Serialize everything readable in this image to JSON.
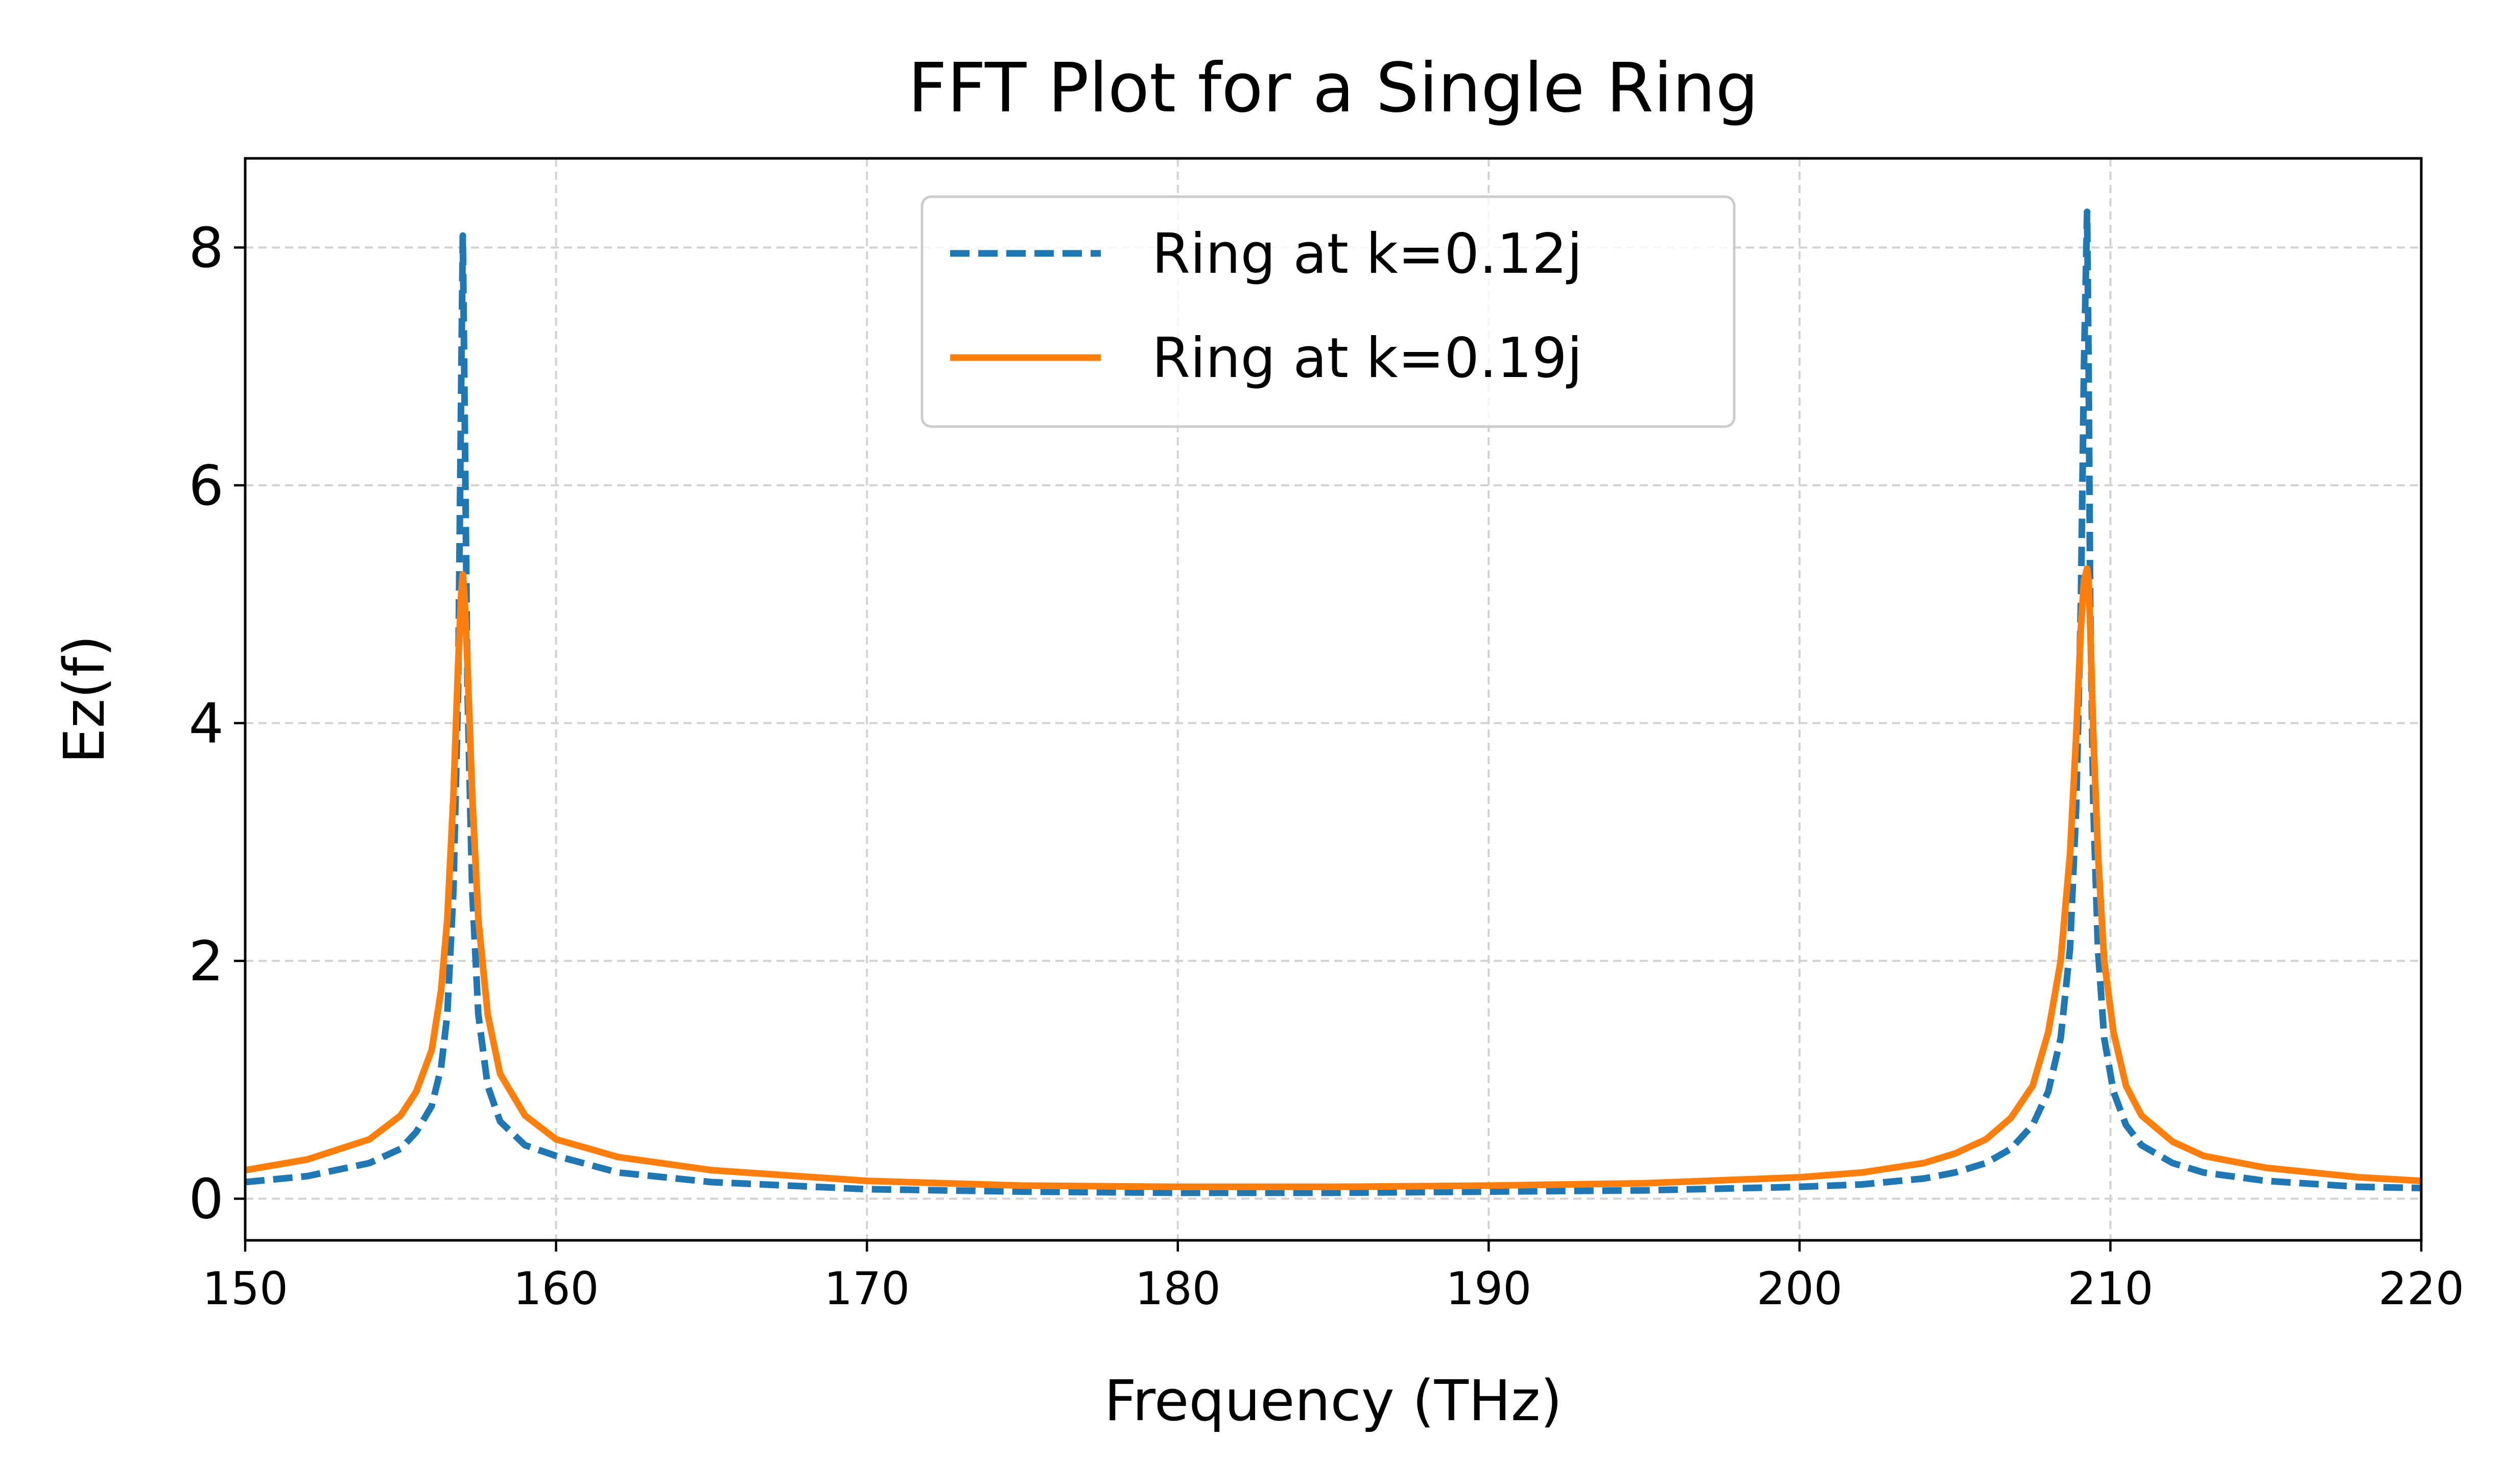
{
  "chart_data": {
    "type": "line",
    "title": "FFT Plot for a Single Ring",
    "xlabel": "Frequency (THz)",
    "ylabel": "Ez(f)",
    "xlim": [
      150,
      220
    ],
    "ylim": [
      -0.35,
      8.75
    ],
    "xticks": [
      150,
      160,
      170,
      180,
      190,
      200,
      210,
      220
    ],
    "yticks": [
      0,
      2,
      4,
      6,
      8
    ],
    "xtick_labels": [
      "150",
      "160",
      "170",
      "180",
      "190",
      "200",
      "210",
      "220"
    ],
    "ytick_labels": [
      "0",
      "2",
      "4",
      "6",
      "8"
    ],
    "grid": true,
    "legend_position": "upper center",
    "series": [
      {
        "name": "Ring at k=0.12j",
        "color": "#1f77b4",
        "linestyle": "dashed",
        "x": [
          150,
          152,
          154,
          155,
          155.5,
          156,
          156.3,
          156.5,
          156.7,
          156.85,
          156.95,
          157,
          157.05,
          157.15,
          157.3,
          157.5,
          157.8,
          158.2,
          159,
          160,
          162,
          165,
          170,
          175,
          180,
          185,
          190,
          195,
          200,
          202,
          204,
          205,
          206,
          206.8,
          207.5,
          208,
          208.4,
          208.7,
          208.9,
          209.05,
          209.15,
          209.25,
          209.3,
          209.35,
          209.45,
          209.6,
          209.8,
          210.1,
          210.5,
          211,
          212,
          213,
          215,
          218,
          220
        ],
        "y": [
          0.14,
          0.19,
          0.3,
          0.42,
          0.56,
          0.78,
          1.1,
          1.55,
          2.6,
          4.3,
          6.9,
          8.1,
          6.9,
          4.3,
          2.6,
          1.55,
          0.95,
          0.65,
          0.45,
          0.36,
          0.22,
          0.14,
          0.08,
          0.06,
          0.05,
          0.05,
          0.06,
          0.07,
          0.1,
          0.12,
          0.17,
          0.22,
          0.3,
          0.42,
          0.62,
          0.9,
          1.35,
          2.1,
          3.3,
          5.0,
          7.0,
          8.3,
          7.0,
          5.0,
          3.3,
          2.1,
          1.35,
          0.9,
          0.62,
          0.45,
          0.3,
          0.22,
          0.15,
          0.1,
          0.09
        ]
      },
      {
        "name": "Ring at k=0.19j",
        "color": "#ff7f0e",
        "linestyle": "solid",
        "x": [
          150,
          152,
          154,
          155,
          155.5,
          156,
          156.3,
          156.5,
          156.7,
          156.85,
          156.95,
          157,
          157.05,
          157.15,
          157.3,
          157.5,
          157.8,
          158.2,
          159,
          160,
          162,
          165,
          170,
          175,
          180,
          185,
          190,
          195,
          200,
          202,
          204,
          205,
          206,
          206.8,
          207.5,
          208,
          208.4,
          208.7,
          208.9,
          209.05,
          209.15,
          209.25,
          209.3,
          209.35,
          209.45,
          209.6,
          209.8,
          210.1,
          210.5,
          211,
          212,
          213,
          215,
          218,
          220
        ],
        "y": [
          0.24,
          0.33,
          0.5,
          0.7,
          0.9,
          1.25,
          1.75,
          2.35,
          3.4,
          4.5,
          5.1,
          5.25,
          5.1,
          4.5,
          3.4,
          2.35,
          1.55,
          1.05,
          0.7,
          0.5,
          0.35,
          0.24,
          0.15,
          0.11,
          0.1,
          0.1,
          0.11,
          0.13,
          0.18,
          0.22,
          0.3,
          0.38,
          0.5,
          0.68,
          0.95,
          1.4,
          2.0,
          2.9,
          3.9,
          4.8,
          5.2,
          5.3,
          5.2,
          4.8,
          3.9,
          2.9,
          2.0,
          1.4,
          0.95,
          0.7,
          0.48,
          0.36,
          0.26,
          0.18,
          0.15
        ]
      }
    ]
  }
}
